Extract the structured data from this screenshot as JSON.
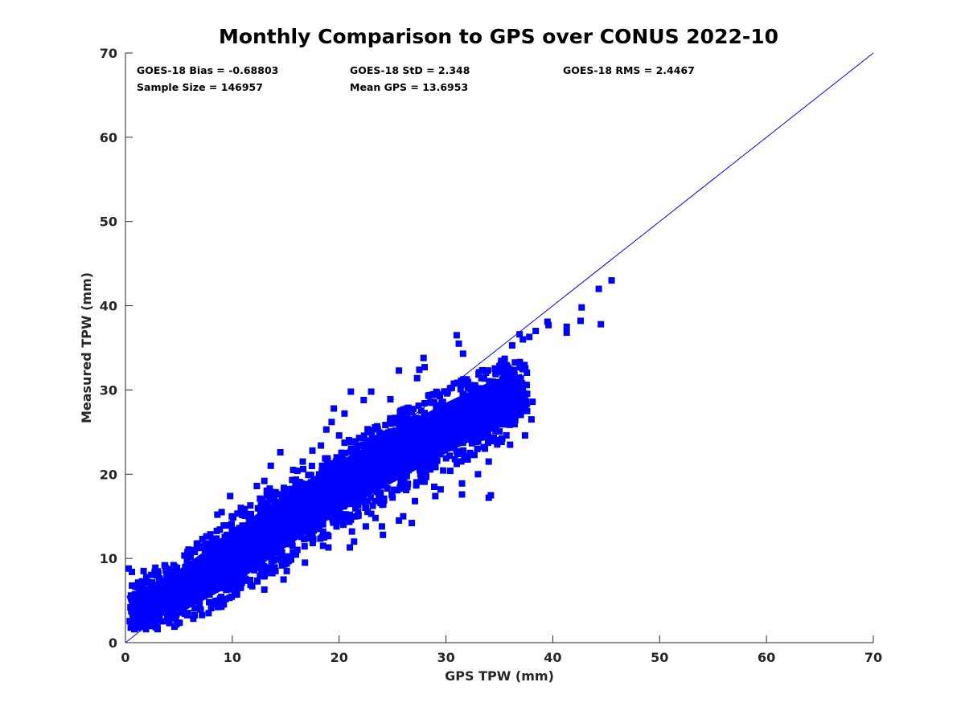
{
  "chart_data": {
    "type": "scatter",
    "title": "Monthly Comparison to GPS over CONUS 2022-10",
    "xlabel": "GPS TPW (mm)",
    "ylabel": "Measured TPW (mm)",
    "xlim": [
      0,
      70
    ],
    "ylim": [
      0,
      70
    ],
    "xticks": [
      "0",
      "10",
      "20",
      "30",
      "40",
      "50",
      "60",
      "70"
    ],
    "yticks": [
      "0",
      "10",
      "20",
      "30",
      "40",
      "50",
      "60",
      "70"
    ],
    "grid": false,
    "marker_color": "#0000ff",
    "reference_line": {
      "name": "one-to-one line",
      "x": [
        0,
        70
      ],
      "y": [
        0,
        70
      ],
      "color": "#0000ff"
    },
    "stats": {
      "bias": "GOES-18 Bias = -0.68803",
      "std": "GOES-18 StD = 2.348",
      "rms": "GOES-18 RMS = 2.4467",
      "sample_size": "Sample Size = 146957",
      "mean_gps": "Mean GPS = 13.6953"
    },
    "dense_cloud": {
      "description_x_range": [
        0,
        38
      ],
      "centerline": [
        [
          0.5,
          4
        ],
        [
          5,
          6
        ],
        [
          10,
          10
        ],
        [
          15,
          14.5
        ],
        [
          20,
          18.5
        ],
        [
          25,
          22
        ],
        [
          30,
          25.5
        ],
        [
          35,
          28.5
        ],
        [
          37.5,
          30
        ]
      ],
      "half_width": [
        [
          0.5,
          2.8
        ],
        [
          5,
          4.2
        ],
        [
          10,
          5.2
        ],
        [
          15,
          5.2
        ],
        [
          20,
          5
        ],
        [
          25,
          5
        ],
        [
          30,
          5
        ],
        [
          35,
          5
        ],
        [
          37.5,
          3.5
        ]
      ]
    },
    "series": [
      {
        "name": "GOES-18 vs GPS outliers",
        "points": [
          [
            0.3,
            8.8
          ],
          [
            0.6,
            8.4
          ],
          [
            1.7,
            8.5
          ],
          [
            2.8,
            8.9
          ],
          [
            4.5,
            9.2
          ],
          [
            5.8,
            10.5
          ],
          [
            7.2,
            12.3
          ],
          [
            8.6,
            15.2
          ],
          [
            9.0,
            15.5
          ],
          [
            9.8,
            17.4
          ],
          [
            10.8,
            16.0
          ],
          [
            12.3,
            18.6
          ],
          [
            13.0,
            19.2
          ],
          [
            13.6,
            21.0
          ],
          [
            13.0,
            6.3
          ],
          [
            14.8,
            7.5
          ],
          [
            15.1,
            8.5
          ],
          [
            14.5,
            22.6
          ],
          [
            15.7,
            20.5
          ],
          [
            16.6,
            21.5
          ],
          [
            17.5,
            22.8
          ],
          [
            18.3,
            23.4
          ],
          [
            18.4,
            21.0
          ],
          [
            16.8,
            9.5
          ],
          [
            18.5,
            11.5
          ],
          [
            19.0,
            11.3
          ],
          [
            18.8,
            25.3
          ],
          [
            19.3,
            26.2
          ],
          [
            19.5,
            27.8
          ],
          [
            20.0,
            24.6
          ],
          [
            20.5,
            27.2
          ],
          [
            21.1,
            29.8
          ],
          [
            20.4,
            14.0
          ],
          [
            21.2,
            13.2
          ],
          [
            21.4,
            12.0
          ],
          [
            21.0,
            11.3
          ],
          [
            22.3,
            28.8
          ],
          [
            23.0,
            29.8
          ],
          [
            22.5,
            13.8
          ],
          [
            23.4,
            14.8
          ],
          [
            23.0,
            15.3
          ],
          [
            24.0,
            13.8
          ],
          [
            24.1,
            12.8
          ],
          [
            24.5,
            24.8
          ],
          [
            24.8,
            28.9
          ],
          [
            25.6,
            32.3
          ],
          [
            25.6,
            14.5
          ],
          [
            26.0,
            15.0
          ],
          [
            26.8,
            14.2
          ],
          [
            27.1,
            16.8
          ],
          [
            27.5,
            32.4
          ],
          [
            27.3,
            31.4
          ],
          [
            27.9,
            33.8
          ],
          [
            28.0,
            32.7
          ],
          [
            29.0,
            17.4
          ],
          [
            29.5,
            18.2
          ],
          [
            28.9,
            18.5
          ],
          [
            30.4,
            20.4
          ],
          [
            31.0,
            36.5
          ],
          [
            31.2,
            35.5
          ],
          [
            31.6,
            34.3
          ],
          [
            31.5,
            18.9
          ],
          [
            31.5,
            17.6
          ],
          [
            34.2,
            17.5
          ],
          [
            34.0,
            17.2
          ],
          [
            33.0,
            20.0
          ],
          [
            34.0,
            21.5
          ],
          [
            35.5,
            33.7
          ],
          [
            36.0,
            23.5
          ],
          [
            36.2,
            35.3
          ],
          [
            36.9,
            36.6
          ],
          [
            37.2,
            36.0
          ],
          [
            37.2,
            29.8
          ],
          [
            37.3,
            28.5
          ],
          [
            37.6,
            27.5
          ],
          [
            38.1,
            28.6
          ],
          [
            38.0,
            26.5
          ],
          [
            37.4,
            24.6
          ],
          [
            37.8,
            36.3
          ],
          [
            38.4,
            37.0
          ],
          [
            39.6,
            37.7
          ],
          [
            39.5,
            38.1
          ],
          [
            41.3,
            36.8
          ],
          [
            41.3,
            37.5
          ],
          [
            42.6,
            38.2
          ],
          [
            42.7,
            39.8
          ],
          [
            44.3,
            42.0
          ],
          [
            44.5,
            37.8
          ],
          [
            45.5,
            43.0
          ]
        ]
      }
    ]
  }
}
